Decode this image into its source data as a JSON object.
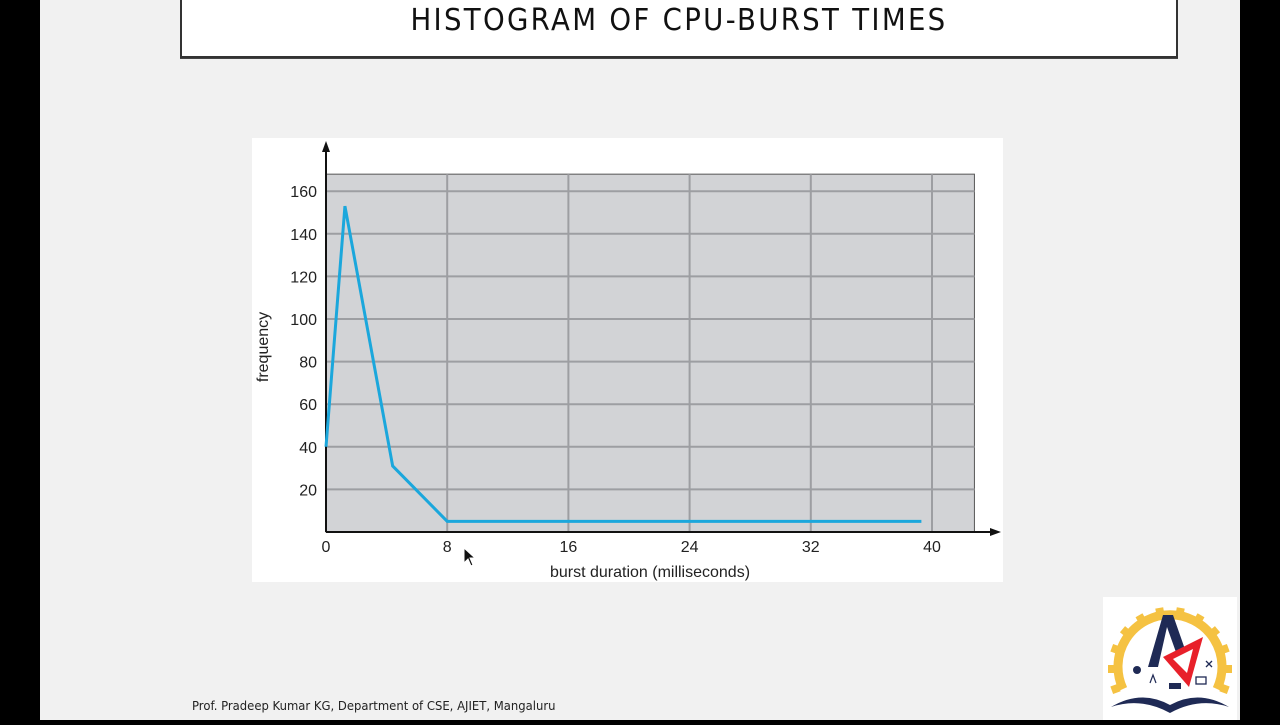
{
  "slide": {
    "title": "HISTOGRAM OF CPU-BURST TIMES",
    "footer": "Prof. Pradeep Kumar KG, Department of CSE, AJIET, Mangaluru",
    "logo": {
      "name": "institution-logo",
      "colors": {
        "gear": "#f5c242",
        "navy": "#1f2a55",
        "red": "#e8202a"
      }
    }
  },
  "colors": {
    "slide_bg": "#f1f1f1",
    "plot_bg": "#d2d3d6",
    "grid": "#9d9ea2",
    "line": "#1ba7dc",
    "axis": "#111111"
  },
  "chart_data": {
    "type": "line",
    "title": "",
    "xlabel": "burst duration (milliseconds)",
    "ylabel": "frequency",
    "xlim": [
      0,
      42.8
    ],
    "ylim": [
      0,
      168
    ],
    "x_ticks": [
      0,
      8,
      16,
      24,
      32,
      40
    ],
    "x_tick_labels": [
      "0",
      "8",
      "16",
      "24",
      "32",
      "40"
    ],
    "y_ticks": [
      20,
      40,
      60,
      80,
      100,
      120,
      140,
      160
    ],
    "y_tick_labels": [
      "20",
      "40",
      "60",
      "80",
      "100",
      "120",
      "140",
      "160"
    ],
    "grid": true,
    "legend": null,
    "series": [
      {
        "name": "frequency",
        "x": [
          0,
          1.25,
          4.4,
          8,
          39.3
        ],
        "y": [
          40,
          153,
          31,
          5,
          5
        ]
      }
    ]
  }
}
